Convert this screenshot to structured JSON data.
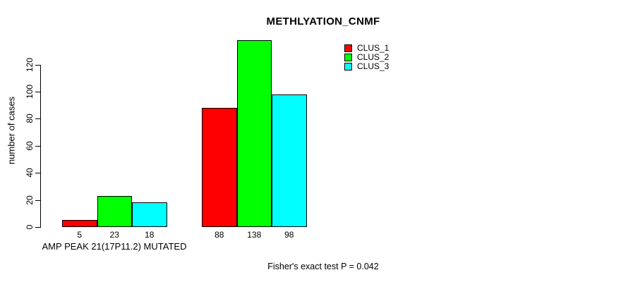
{
  "chart_data": {
    "type": "bar",
    "title": "METHLYATION_CNMF",
    "ylabel": "number of cases",
    "categories": [
      "AMP PEAK 21(17P11.2) MUTATED",
      ""
    ],
    "series": [
      {
        "name": "CLUS_1",
        "color": "#ff0000",
        "values": [
          5,
          88
        ]
      },
      {
        "name": "CLUS_2",
        "color": "#00ff00",
        "values": [
          23,
          138
        ]
      },
      {
        "name": "CLUS_3",
        "color": "#00ffff",
        "values": [
          18,
          98
        ]
      }
    ],
    "yticks": [
      0,
      20,
      40,
      60,
      80,
      100,
      120
    ],
    "ylim": [
      0,
      120
    ],
    "grid": false,
    "legend_position": "top-right",
    "bar_border_color": "#000000",
    "axis_color": "#000000",
    "annotation": "Fisher's exact test P = 0.042"
  }
}
